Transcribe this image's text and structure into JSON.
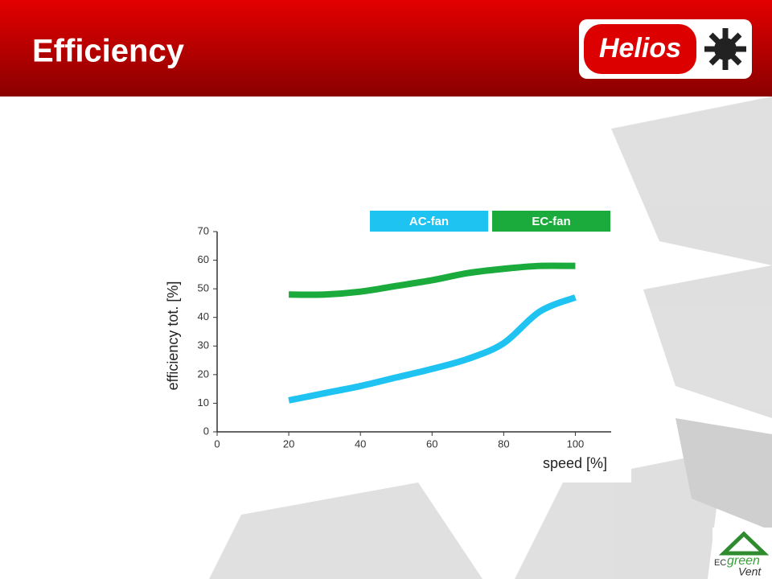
{
  "header": {
    "title": "Efficiency",
    "logo": "Helios"
  },
  "footer_logo": {
    "prefix": "EC",
    "brand": "green",
    "suffix": "Vent"
  },
  "chart_data": {
    "type": "line",
    "x_label": "speed [%]",
    "y_label": "efficiency tot. [%]",
    "x": [
      20,
      30,
      40,
      50,
      60,
      70,
      80,
      90,
      100
    ],
    "series": [
      {
        "name": "AC-fan",
        "color": "#1ec3f2",
        "values": [
          11,
          13.5,
          16,
          19,
          22,
          25.5,
          31,
          42,
          47
        ]
      },
      {
        "name": "EC-fan",
        "color": "#1aab3c",
        "values": [
          48,
          48,
          49,
          51,
          53,
          55.5,
          57,
          58,
          58
        ]
      }
    ],
    "xlim": [
      0,
      110
    ],
    "xticks": [
      0,
      20,
      40,
      60,
      80,
      100
    ],
    "ylim": [
      0,
      70
    ],
    "yticks": [
      0,
      10,
      20,
      30,
      40,
      50,
      60,
      70
    ],
    "grid": false
  }
}
